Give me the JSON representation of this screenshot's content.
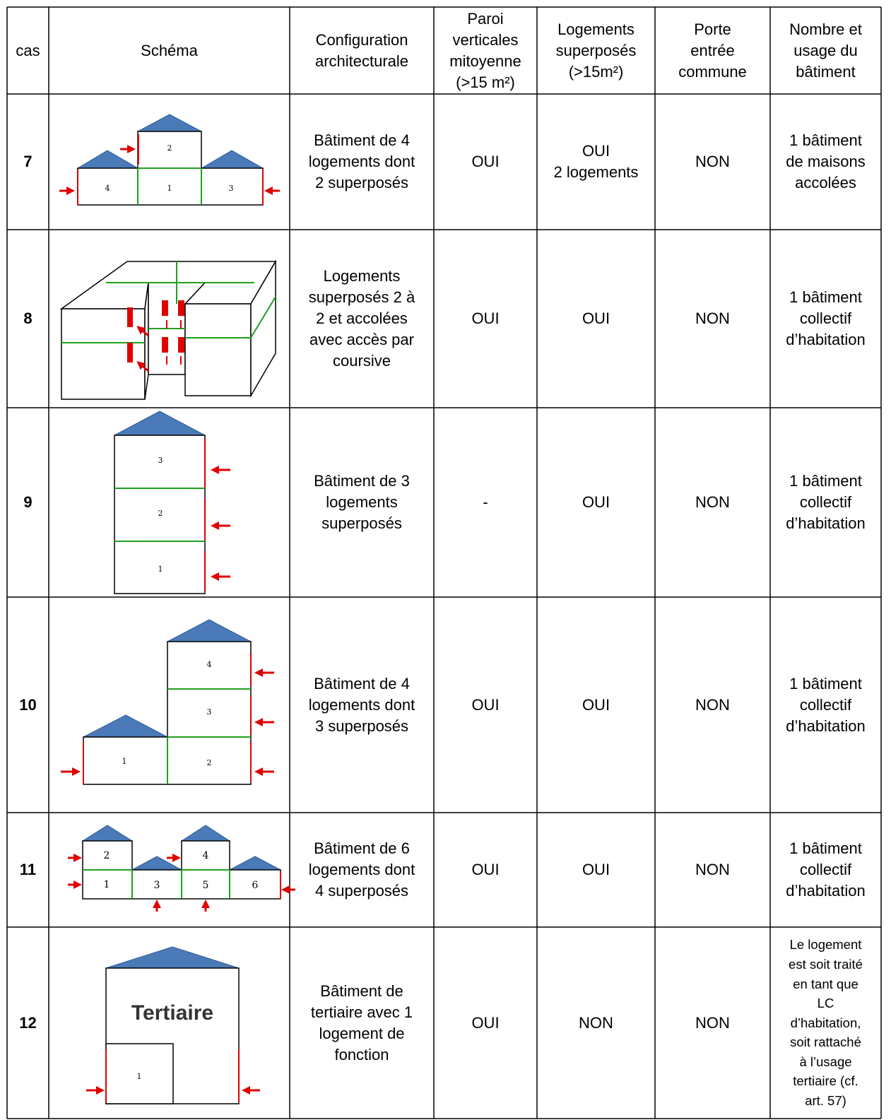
{
  "table": {
    "header": [
      [
        "cas"
      ],
      [
        "Schéma"
      ],
      [
        "Configuration",
        "architecturale"
      ],
      [
        "Paroi",
        "verticales",
        "mitoyenne",
        "(>15 m²)"
      ],
      [
        "Logements",
        "superposés",
        "(>15m²)"
      ],
      [
        "Porte",
        "entrée",
        "commune"
      ],
      [
        "Nombre et",
        "usage du",
        "bâtiment"
      ]
    ],
    "rows": [
      {
        "cas": "7",
        "schema_labels": [
          "2",
          "4",
          "1",
          "3"
        ],
        "configuration": [
          "Bâtiment de 4",
          "logements dont",
          "2 superposés"
        ],
        "paroi": [
          "OUI"
        ],
        "superposes": [
          "OUI",
          "2 logements"
        ],
        "porte": [
          "NON"
        ],
        "usage": [
          "1 bâtiment",
          "de maisons",
          "accolées"
        ]
      },
      {
        "cas": "8",
        "schema_labels": [],
        "configuration": [
          "Logements",
          "superposés 2 à",
          "2 et accolées",
          "avec accès par",
          "coursive"
        ],
        "paroi": [
          "OUI"
        ],
        "superposes": [
          "OUI"
        ],
        "porte": [
          "NON"
        ],
        "usage": [
          "1 bâtiment",
          "collectif",
          "d’habitation"
        ]
      },
      {
        "cas": "9",
        "schema_labels": [
          "3",
          "2",
          "1"
        ],
        "configuration": [
          "Bâtiment de 3",
          "logements",
          "superposés"
        ],
        "paroi": [
          "-"
        ],
        "superposes": [
          "OUI"
        ],
        "porte": [
          "NON"
        ],
        "usage": [
          "1 bâtiment",
          "collectif",
          "d’habitation"
        ]
      },
      {
        "cas": "10",
        "schema_labels": [
          "4",
          "3",
          "1",
          "2"
        ],
        "configuration": [
          "Bâtiment de 4",
          "logements dont",
          "3 superposés"
        ],
        "paroi": [
          "OUI"
        ],
        "superposes": [
          "OUI"
        ],
        "porte": [
          "NON"
        ],
        "usage": [
          "1 bâtiment",
          "collectif",
          "d’habitation"
        ]
      },
      {
        "cas": "11",
        "schema_labels": [
          "2",
          "4",
          "1",
          "3",
          "5",
          "6"
        ],
        "configuration": [
          "Bâtiment de 6",
          "logements dont",
          "4 superposés"
        ],
        "paroi": [
          "OUI"
        ],
        "superposes": [
          "OUI"
        ],
        "porte": [
          "NON"
        ],
        "usage": [
          "1 bâtiment",
          "collectif",
          "d’habitation"
        ]
      },
      {
        "cas": "12",
        "schema_labels": [
          "Tertiaire",
          "1"
        ],
        "configuration": [
          "Bâtiment de",
          "tertiaire avec 1",
          "logement de",
          "fonction"
        ],
        "paroi": [
          "OUI"
        ],
        "superposes": [
          "NON"
        ],
        "porte": [
          "NON"
        ],
        "usage": [
          "Le logement",
          "est soit traité",
          "en tant que",
          "LC",
          "d’habitation,",
          "soit rattaché",
          "à l’usage",
          "tertiaire (cf.",
          "art. 57)"
        ]
      }
    ]
  }
}
